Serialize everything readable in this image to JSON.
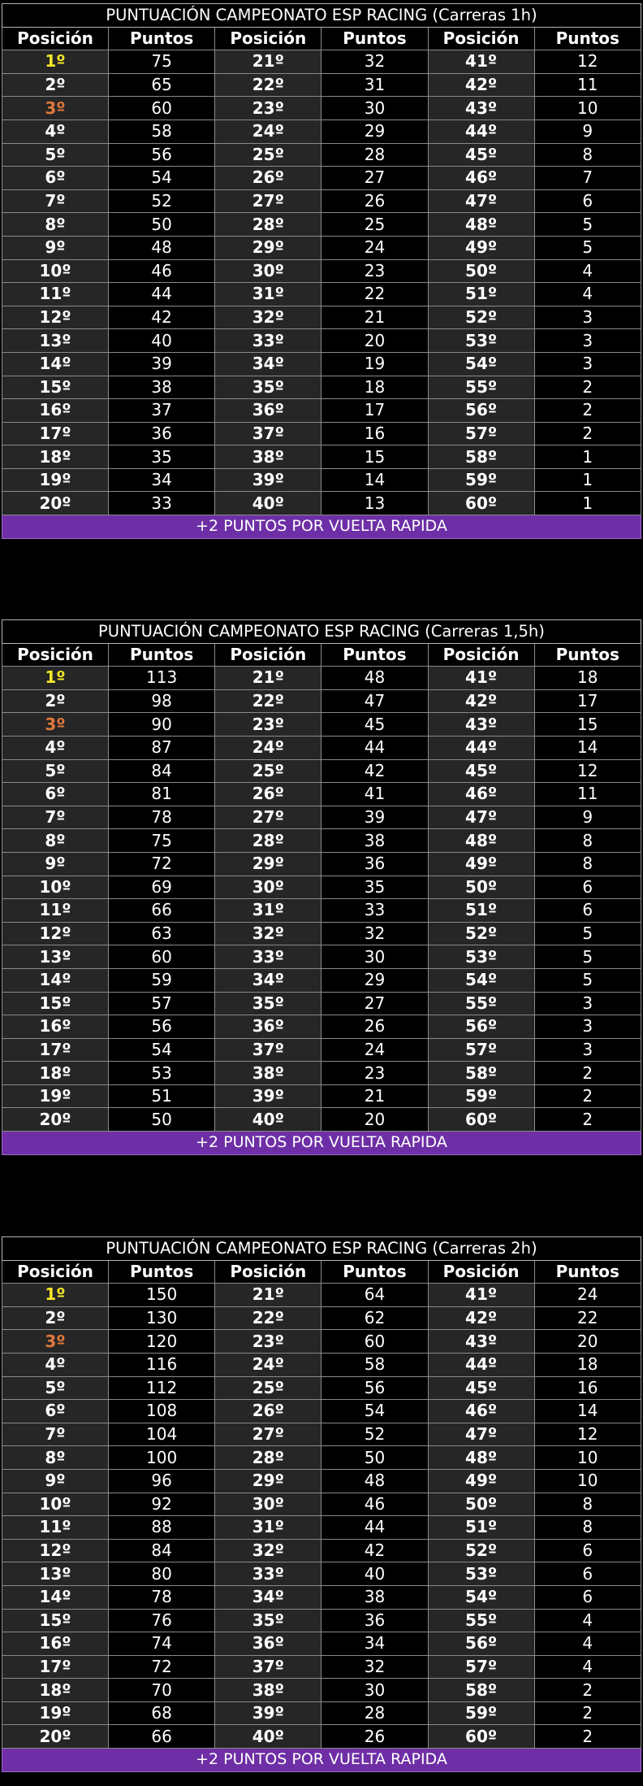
{
  "headers": {
    "position": "Posición",
    "points": "Puntos"
  },
  "footer_label": "+2 PUNTOS POR VUELTA RAPIDA",
  "colors": {
    "first_place": "#f5e72a",
    "third_place": "#e0783c",
    "footer_bg": "#6e2fa6"
  },
  "tables": [
    {
      "title": "PUNTUACIÓN CAMPEONATO ESP RACING (Carreras 1h)",
      "points": [
        75,
        65,
        60,
        58,
        56,
        54,
        52,
        50,
        48,
        46,
        44,
        42,
        40,
        39,
        38,
        37,
        36,
        35,
        34,
        33,
        32,
        31,
        30,
        29,
        28,
        27,
        26,
        25,
        24,
        23,
        22,
        21,
        20,
        19,
        18,
        17,
        16,
        15,
        14,
        13,
        12,
        11,
        10,
        9,
        8,
        7,
        6,
        5,
        5,
        4,
        4,
        3,
        3,
        3,
        2,
        2,
        2,
        1,
        1,
        1
      ]
    },
    {
      "title": "PUNTUACIÓN CAMPEONATO ESP RACING (Carreras 1,5h)",
      "points": [
        113,
        98,
        90,
        87,
        84,
        81,
        78,
        75,
        72,
        69,
        66,
        63,
        60,
        59,
        57,
        56,
        54,
        53,
        51,
        50,
        48,
        47,
        45,
        44,
        42,
        41,
        39,
        38,
        36,
        35,
        33,
        32,
        30,
        29,
        27,
        26,
        24,
        23,
        21,
        20,
        18,
        17,
        15,
        14,
        12,
        11,
        9,
        8,
        8,
        6,
        6,
        5,
        5,
        5,
        3,
        3,
        3,
        2,
        2,
        2
      ]
    },
    {
      "title": "PUNTUACIÓN CAMPEONATO ESP RACING (Carreras 2h)",
      "points": [
        150,
        130,
        120,
        116,
        112,
        108,
        104,
        100,
        96,
        92,
        88,
        84,
        80,
        78,
        76,
        74,
        72,
        70,
        68,
        66,
        64,
        62,
        60,
        58,
        56,
        54,
        52,
        50,
        48,
        46,
        44,
        42,
        40,
        38,
        36,
        34,
        32,
        30,
        28,
        26,
        24,
        22,
        20,
        18,
        16,
        14,
        12,
        10,
        10,
        8,
        8,
        6,
        6,
        6,
        4,
        4,
        4,
        2,
        2,
        2
      ]
    }
  ]
}
